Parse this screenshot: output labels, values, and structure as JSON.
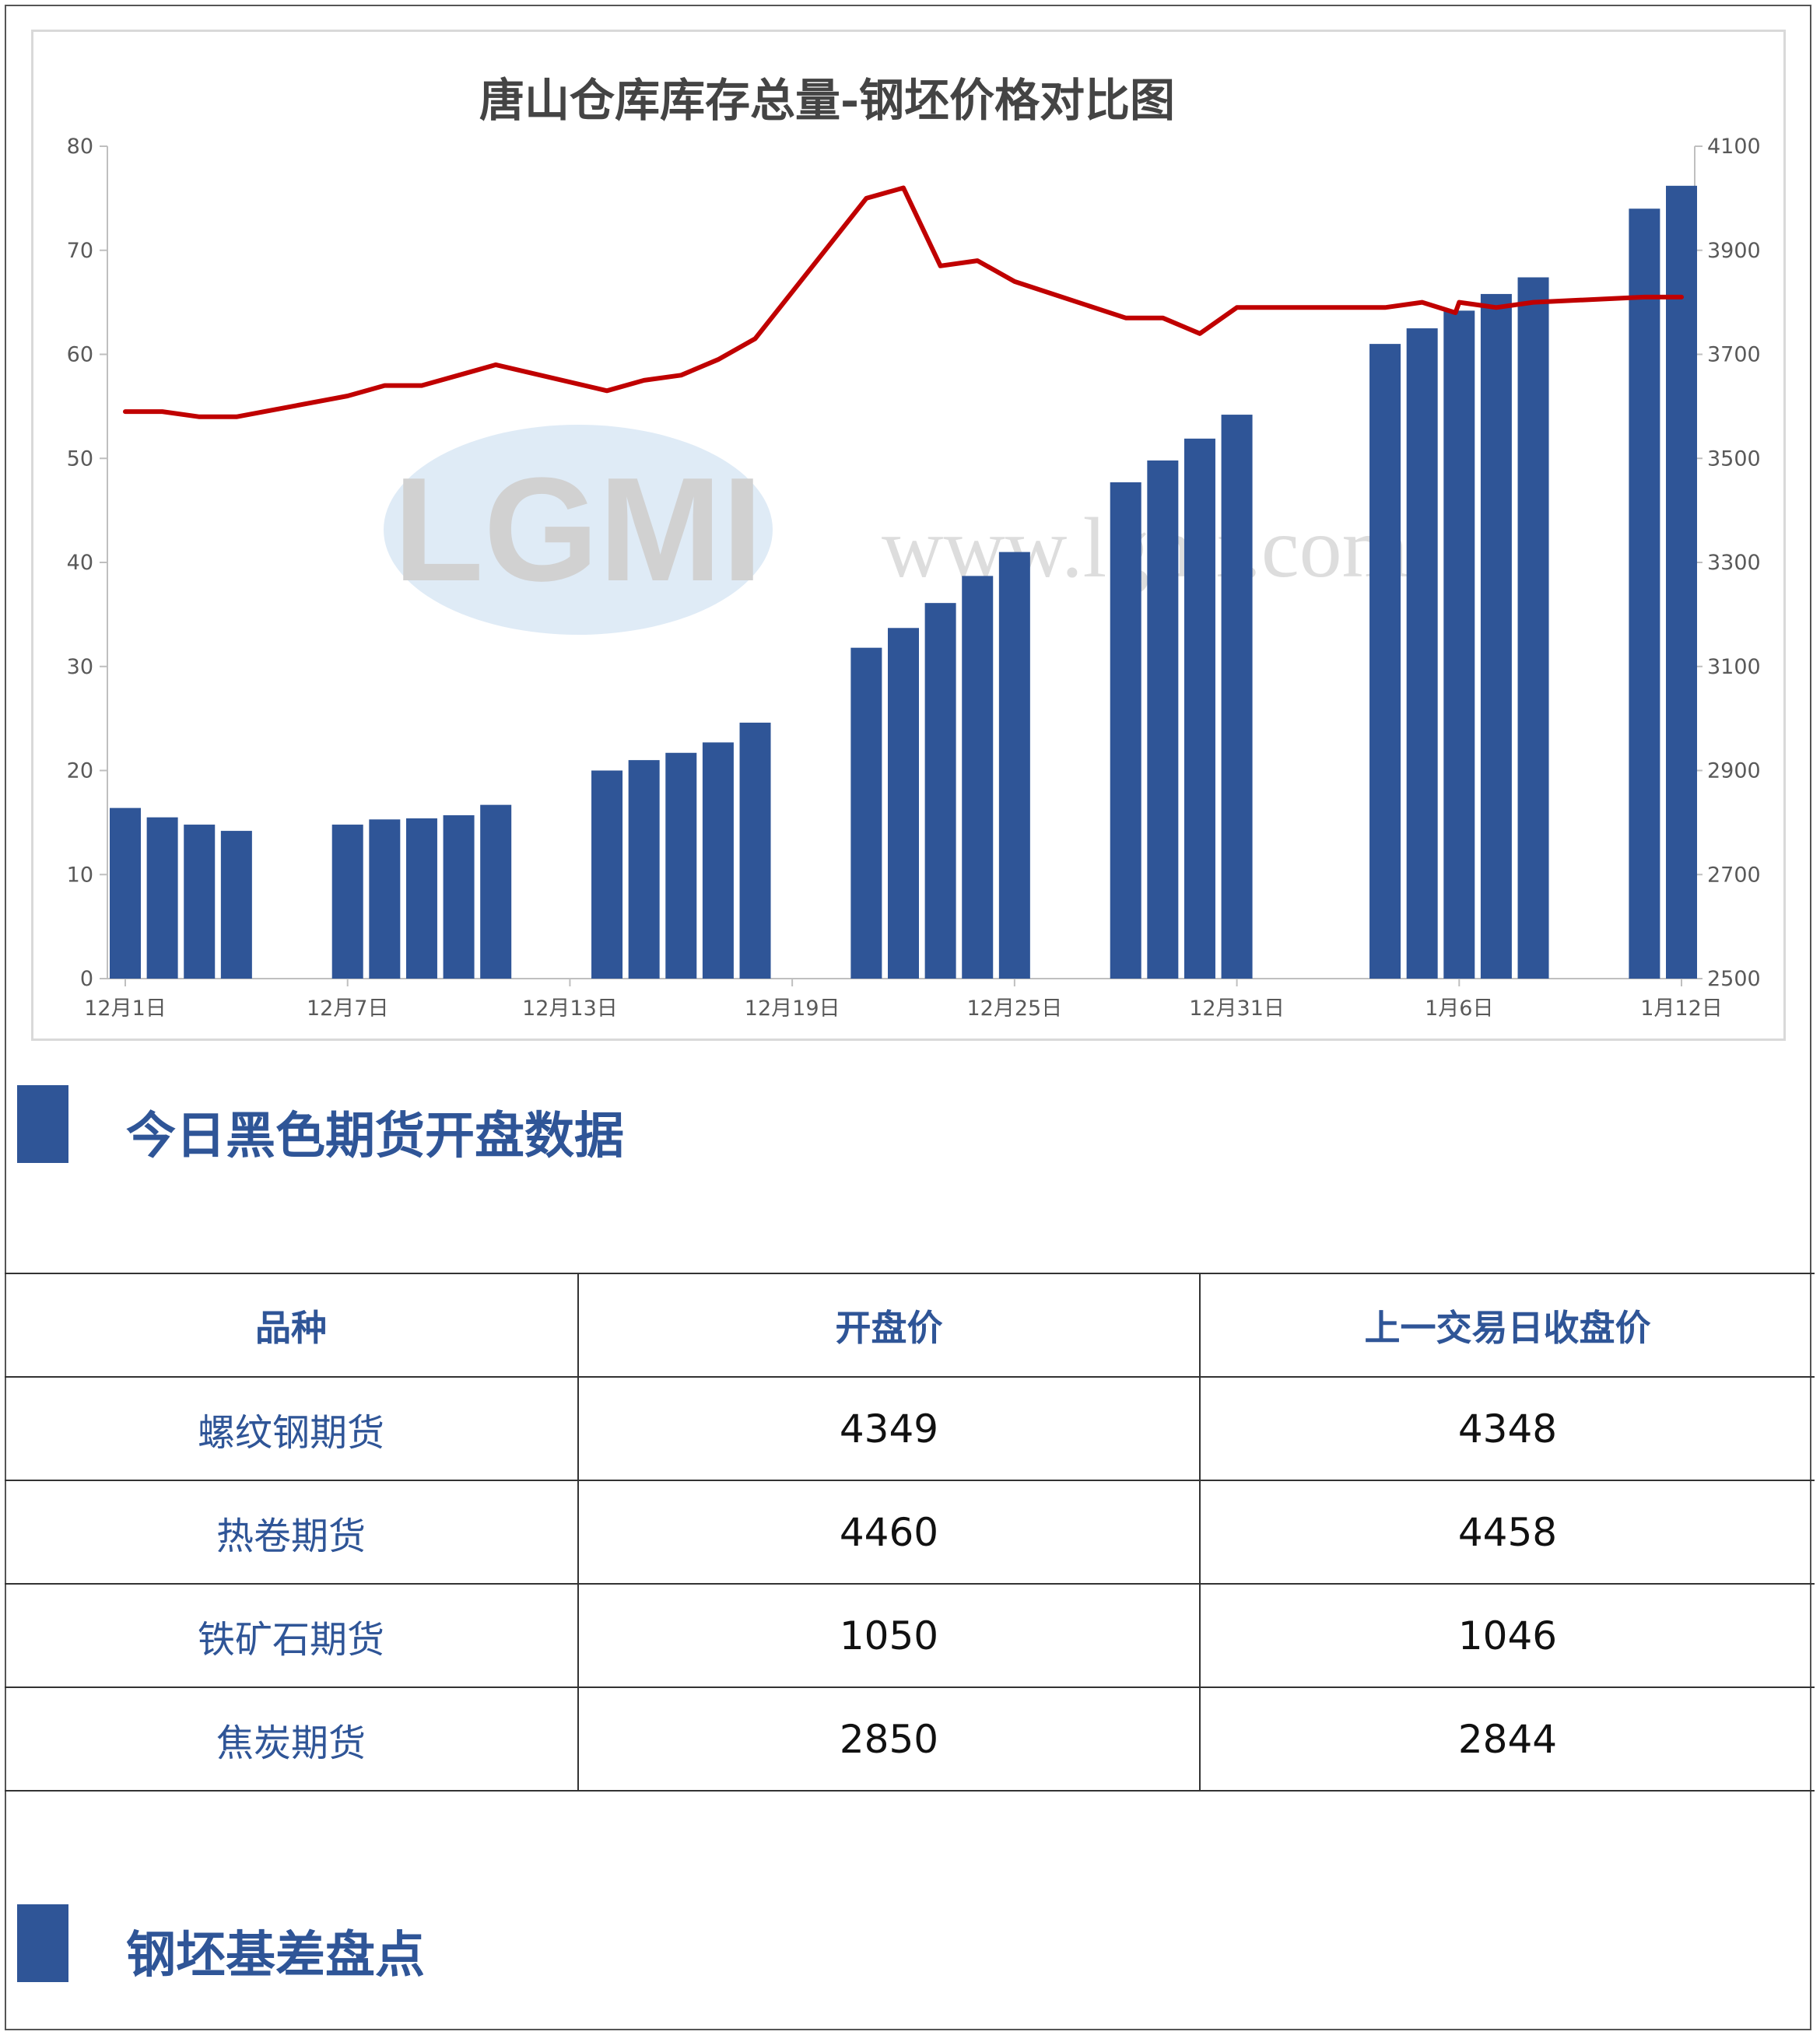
{
  "chart_data": {
    "type": "bar+line",
    "title": "唐山仓库库存总量-钢坯价格对比图",
    "x_tick_labels": [
      "12月1日",
      "12月7日",
      "12月13日",
      "12月19日",
      "12月25日",
      "12月31日",
      "1月6日",
      "1月12日"
    ],
    "y_left": {
      "ylim": [
        0,
        80
      ],
      "ticks": [
        0,
        10,
        20,
        30,
        40,
        50,
        60,
        70,
        80
      ]
    },
    "y_right": {
      "ylim": [
        2500,
        4100
      ],
      "ticks": [
        2500,
        2700,
        2900,
        3100,
        3300,
        3500,
        3700,
        3900,
        4100
      ]
    },
    "grid": false,
    "bar_series": {
      "color": "#2f5597",
      "points": [
        {
          "day": 1,
          "value": 16.4
        },
        {
          "day": 2,
          "value": 15.5
        },
        {
          "day": 3,
          "value": 14.8
        },
        {
          "day": 4,
          "value": 14.2
        },
        {
          "day": 7,
          "value": 14.8
        },
        {
          "day": 8,
          "value": 15.3
        },
        {
          "day": 9,
          "value": 15.4
        },
        {
          "day": 10,
          "value": 15.7
        },
        {
          "day": 11,
          "value": 16.7
        },
        {
          "day": 14,
          "value": 20.0
        },
        {
          "day": 15,
          "value": 21.0
        },
        {
          "day": 16,
          "value": 21.7
        },
        {
          "day": 17,
          "value": 22.7
        },
        {
          "day": 18,
          "value": 24.6
        },
        {
          "day": 21,
          "value": 31.8
        },
        {
          "day": 22,
          "value": 33.7
        },
        {
          "day": 23,
          "value": 36.1
        },
        {
          "day": 24,
          "value": 38.7
        },
        {
          "day": 25,
          "value": 41.0
        },
        {
          "day": 28,
          "value": 47.7
        },
        {
          "day": 29,
          "value": 49.8
        },
        {
          "day": 30,
          "value": 51.9
        },
        {
          "day": 31,
          "value": 54.2
        },
        {
          "day": 35,
          "value": 61.0
        },
        {
          "day": 36,
          "value": 62.5
        },
        {
          "day": 37,
          "value": 64.2
        },
        {
          "day": 38,
          "value": 65.8
        },
        {
          "day": 39,
          "value": 67.4
        },
        {
          "day": 42,
          "value": 74.0
        },
        {
          "day": 43,
          "value": 76.2
        }
      ]
    },
    "line_series": {
      "color": "#c00000",
      "points": [
        {
          "day": 1,
          "value": 3590
        },
        {
          "day": 2,
          "value": 3590
        },
        {
          "day": 3,
          "value": 3580
        },
        {
          "day": 4,
          "value": 3580
        },
        {
          "day": 7,
          "value": 3620
        },
        {
          "day": 8,
          "value": 3640
        },
        {
          "day": 9,
          "value": 3640
        },
        {
          "day": 10,
          "value": 3660
        },
        {
          "day": 11,
          "value": 3680
        },
        {
          "day": 14,
          "value": 3630
        },
        {
          "day": 15,
          "value": 3650
        },
        {
          "day": 16,
          "value": 3660
        },
        {
          "day": 17,
          "value": 3690
        },
        {
          "day": 18,
          "value": 3730
        },
        {
          "day": 21,
          "value": 4000
        },
        {
          "day": 22,
          "value": 4020
        },
        {
          "day": 23,
          "value": 3870
        },
        {
          "day": 24,
          "value": 3880
        },
        {
          "day": 25,
          "value": 3840
        },
        {
          "day": 28,
          "value": 3770
        },
        {
          "day": 29,
          "value": 3770
        },
        {
          "day": 30,
          "value": 3740
        },
        {
          "day": 31,
          "value": 3790
        },
        {
          "day": 35,
          "value": 3790
        },
        {
          "day": 36,
          "value": 3800
        },
        {
          "day": 36.9,
          "value": 3780
        },
        {
          "day": 37,
          "value": 3800
        },
        {
          "day": 38,
          "value": 3790
        },
        {
          "day": 39,
          "value": 3800
        },
        {
          "day": 42,
          "value": 3810
        },
        {
          "day": 43,
          "value": 3810
        }
      ]
    },
    "watermark": {
      "logo_text": "LGMI",
      "url_text": "www.lgmi.com"
    }
  },
  "sections": [
    {
      "title": "今日黑色期货开盘数据"
    },
    {
      "title": "钢坯基差盘点"
    }
  ],
  "futures_table": {
    "headers": [
      "品种",
      "开盘价",
      "上一交易日收盘价"
    ],
    "rows": [
      {
        "name": "螺纹钢期货",
        "open": "4349",
        "prev_close": "4348"
      },
      {
        "name": "热卷期货",
        "open": "4460",
        "prev_close": "4458"
      },
      {
        "name": "铁矿石期货",
        "open": "1050",
        "prev_close": "1046"
      },
      {
        "name": "焦炭期货",
        "open": "2850",
        "prev_close": "2844"
      }
    ]
  }
}
